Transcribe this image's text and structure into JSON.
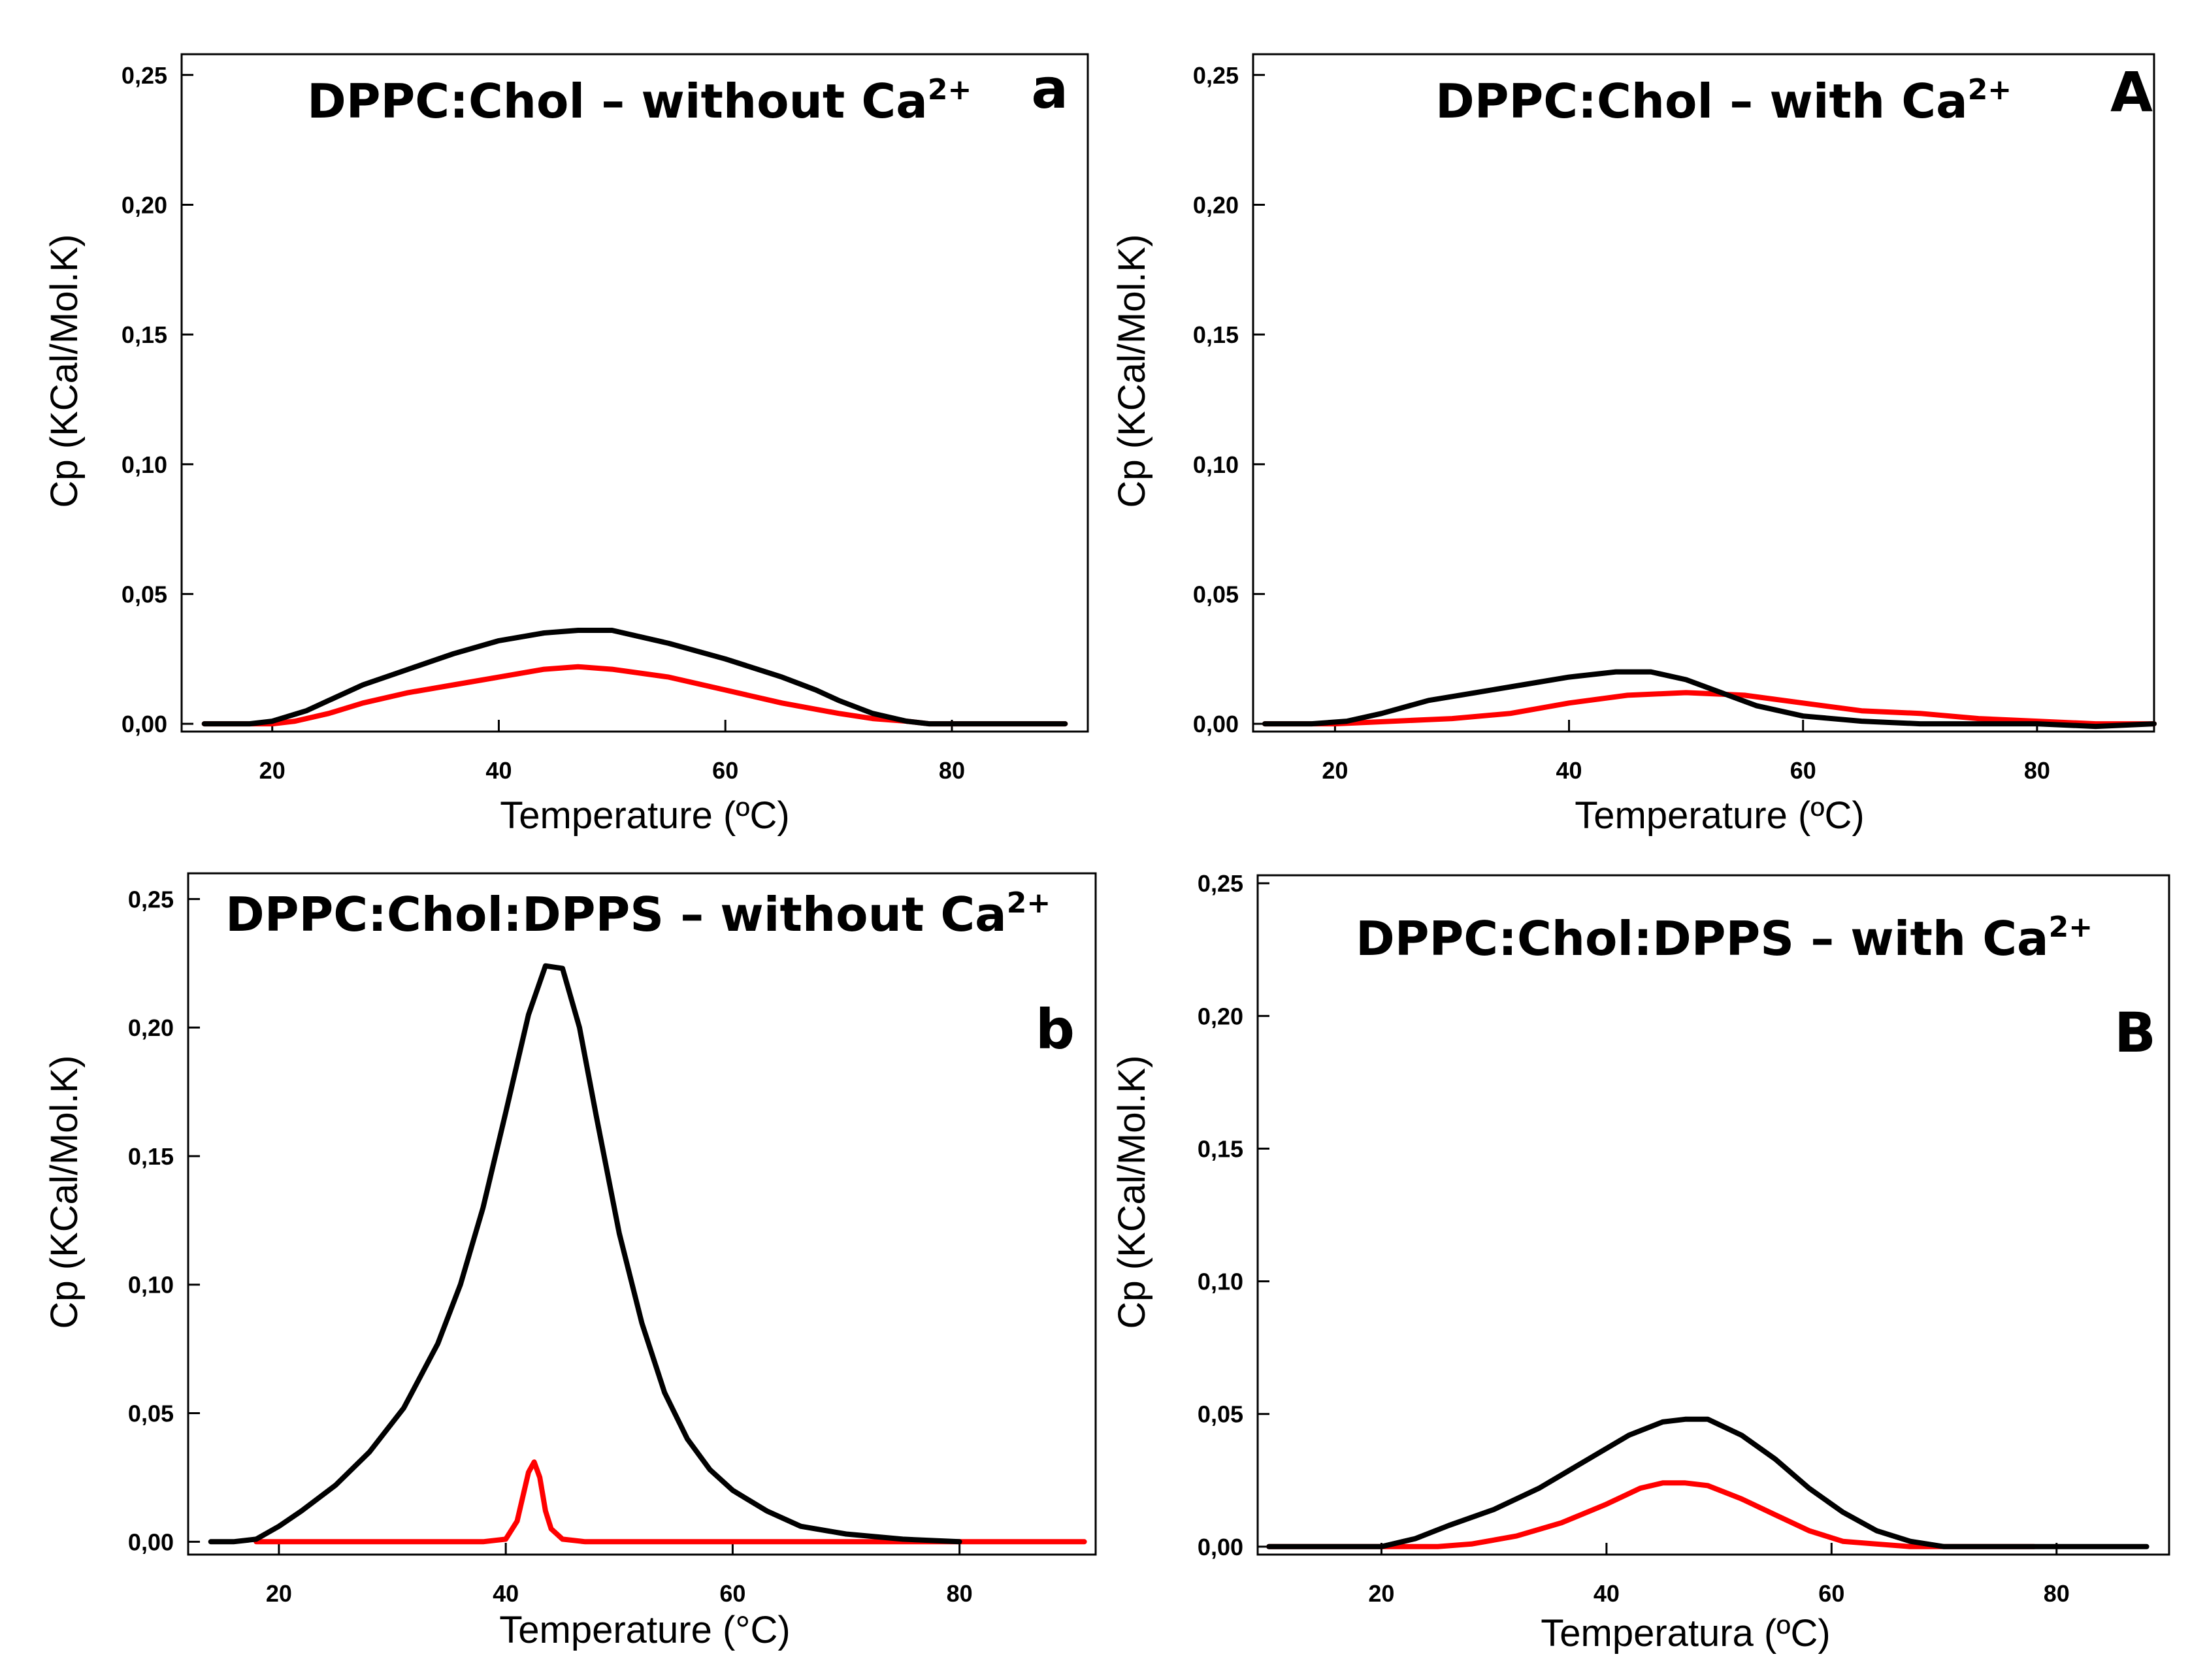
{
  "chart_data": [
    {
      "type": "line",
      "panel_letter": "a",
      "title": "DPPC:Chol – without Ca",
      "title_superscript": "2+",
      "xlabel": "Temperature (ºC)",
      "ylabel": "Cp (KCal/Mol.K)",
      "xlim": [
        12,
        92
      ],
      "ylim": [
        -0.003,
        0.258
      ],
      "xticks": [
        20,
        40,
        60,
        80
      ],
      "xtick_labels": [
        "20",
        "40",
        "60",
        "80"
      ],
      "yticks": [
        0,
        0.05,
        0.1,
        0.15,
        0.2,
        0.25
      ],
      "ytick_labels": [
        "0,00",
        "0,05",
        "0,10",
        "0,15",
        "0,20",
        "0,25"
      ],
      "series": [
        {
          "name": "black",
          "color": "#000000",
          "x": [
            14,
            18,
            20,
            23,
            25,
            28,
            32,
            36,
            40,
            44,
            47,
            50,
            55,
            60,
            65,
            68,
            70,
            73,
            76,
            78,
            80,
            85,
            90
          ],
          "y": [
            0,
            0,
            0.001,
            0.005,
            0.009,
            0.015,
            0.021,
            0.027,
            0.032,
            0.035,
            0.036,
            0.036,
            0.031,
            0.025,
            0.018,
            0.013,
            0.009,
            0.004,
            0.001,
            0,
            0,
            0,
            0
          ]
        },
        {
          "name": "red",
          "color": "#ff0000",
          "x": [
            14,
            18,
            20,
            22,
            25,
            28,
            32,
            36,
            40,
            44,
            47,
            50,
            55,
            60,
            65,
            70,
            73,
            76,
            78,
            80,
            85,
            90
          ],
          "y": [
            0,
            0,
            0,
            0.001,
            0.004,
            0.008,
            0.012,
            0.015,
            0.018,
            0.021,
            0.022,
            0.021,
            0.018,
            0.013,
            0.008,
            0.004,
            0.002,
            0.001,
            0,
            0,
            0,
            0
          ]
        }
      ]
    },
    {
      "type": "line",
      "panel_letter": "A",
      "title": "DPPC:Chol – with Ca",
      "title_superscript": "2+",
      "xlabel": "Temperature (ºC)",
      "ylabel": "Cp (KCal/Mol.K)",
      "xlim": [
        13,
        90
      ],
      "ylim": [
        -0.003,
        0.258
      ],
      "xticks": [
        20,
        40,
        60,
        80
      ],
      "xtick_labels": [
        "20",
        "40",
        "60",
        "80"
      ],
      "yticks": [
        0,
        0.05,
        0.1,
        0.15,
        0.2,
        0.25
      ],
      "ytick_labels": [
        "0,00",
        "0,05",
        "0,10",
        "0,15",
        "0,20",
        "0,25"
      ],
      "series": [
        {
          "name": "black",
          "color": "#000000",
          "x": [
            14,
            18,
            21,
            24,
            28,
            32,
            36,
            40,
            44,
            47,
            50,
            53,
            56,
            60,
            65,
            70,
            75,
            80,
            85,
            90
          ],
          "y": [
            0,
            0,
            0.001,
            0.004,
            0.009,
            0.012,
            0.015,
            0.018,
            0.02,
            0.02,
            0.017,
            0.012,
            0.007,
            0.003,
            0.001,
            0,
            0,
            0,
            -0.001,
            0
          ]
        },
        {
          "name": "red",
          "color": "#ff0000",
          "x": [
            14,
            20,
            25,
            30,
            35,
            40,
            45,
            50,
            55,
            60,
            65,
            70,
            75,
            80,
            85,
            90
          ],
          "y": [
            0,
            0,
            0.001,
            0.002,
            0.004,
            0.008,
            0.011,
            0.012,
            0.011,
            0.008,
            0.005,
            0.004,
            0.002,
            0.001,
            0,
            0
          ]
        }
      ]
    },
    {
      "type": "line",
      "panel_letter": "b",
      "title": "DPPC:Chol:DPPS – without Ca",
      "title_superscript": "2+",
      "xlabel": "Temperature (°C)",
      "ylabel": "Cp (KCal/Mol.K)",
      "xlim": [
        12,
        92
      ],
      "ylim": [
        -0.005,
        0.26
      ],
      "xticks": [
        20,
        40,
        60,
        80
      ],
      "xtick_labels": [
        "20",
        "40",
        "60",
        "80"
      ],
      "yticks": [
        0,
        0.05,
        0.1,
        0.15,
        0.2,
        0.25
      ],
      "ytick_labels": [
        "0,00",
        "0,05",
        "0,10",
        "0,15",
        "0,20",
        "0,25"
      ],
      "series": [
        {
          "name": "black",
          "color": "#000000",
          "x": [
            14,
            16,
            18,
            20,
            22,
            25,
            28,
            31,
            34,
            36,
            38,
            40,
            42,
            43.5,
            45,
            46.5,
            48,
            50,
            52,
            54,
            56,
            58,
            60,
            63,
            66,
            70,
            75,
            80
          ],
          "y": [
            0,
            0,
            0.001,
            0.006,
            0.012,
            0.022,
            0.035,
            0.052,
            0.077,
            0.1,
            0.13,
            0.167,
            0.205,
            0.224,
            0.223,
            0.2,
            0.165,
            0.12,
            0.085,
            0.058,
            0.04,
            0.028,
            0.02,
            0.012,
            0.006,
            0.003,
            0.001,
            0
          ]
        },
        {
          "name": "red",
          "color": "#ff0000",
          "x": [
            18,
            30,
            38,
            40,
            41,
            42,
            42.5,
            43,
            43.5,
            44,
            45,
            47,
            60,
            91
          ],
          "y": [
            0,
            0,
            0,
            0.001,
            0.008,
            0.027,
            0.031,
            0.025,
            0.012,
            0.005,
            0.001,
            0,
            0,
            0
          ]
        }
      ]
    },
    {
      "type": "line",
      "panel_letter": "B",
      "title": "DPPC:Chol:DPPS – with Ca",
      "title_superscript": "2+",
      "xlabel": "Temperatura (ºC)",
      "ylabel": "Cp (KCal/Mol.K)",
      "xlim": [
        9,
        90
      ],
      "ylim": [
        -0.003,
        0.253
      ],
      "xticks": [
        20,
        40,
        60,
        80
      ],
      "xtick_labels": [
        "20",
        "40",
        "60",
        "80"
      ],
      "yticks": [
        0,
        0.05,
        0.1,
        0.15,
        0.2,
        0.25
      ],
      "ytick_labels": [
        "0,00",
        "0,05",
        "0,10",
        "0,15",
        "0,20",
        "0,25"
      ],
      "series": [
        {
          "name": "black",
          "color": "#000000",
          "x": [
            10,
            15,
            20,
            23,
            26,
            30,
            34,
            38,
            42,
            45,
            47,
            49,
            52,
            55,
            58,
            61,
            64,
            67,
            70,
            75,
            80,
            88
          ],
          "y": [
            0,
            0,
            0,
            0.003,
            0.008,
            0.014,
            0.022,
            0.032,
            0.042,
            0.047,
            0.048,
            0.048,
            0.042,
            0.033,
            0.022,
            0.013,
            0.006,
            0.002,
            0,
            0,
            0,
            0
          ]
        },
        {
          "name": "red",
          "color": "#ff0000",
          "x": [
            10,
            15,
            20,
            25,
            28,
            32,
            36,
            40,
            43,
            45,
            47,
            49,
            52,
            55,
            58,
            61,
            64,
            67,
            70,
            78
          ],
          "y": [
            0,
            0,
            0,
            0,
            0.001,
            0.004,
            0.009,
            0.016,
            0.022,
            0.024,
            0.024,
            0.023,
            0.018,
            0.012,
            0.006,
            0.002,
            0.001,
            0,
            0,
            0
          ]
        }
      ]
    }
  ]
}
